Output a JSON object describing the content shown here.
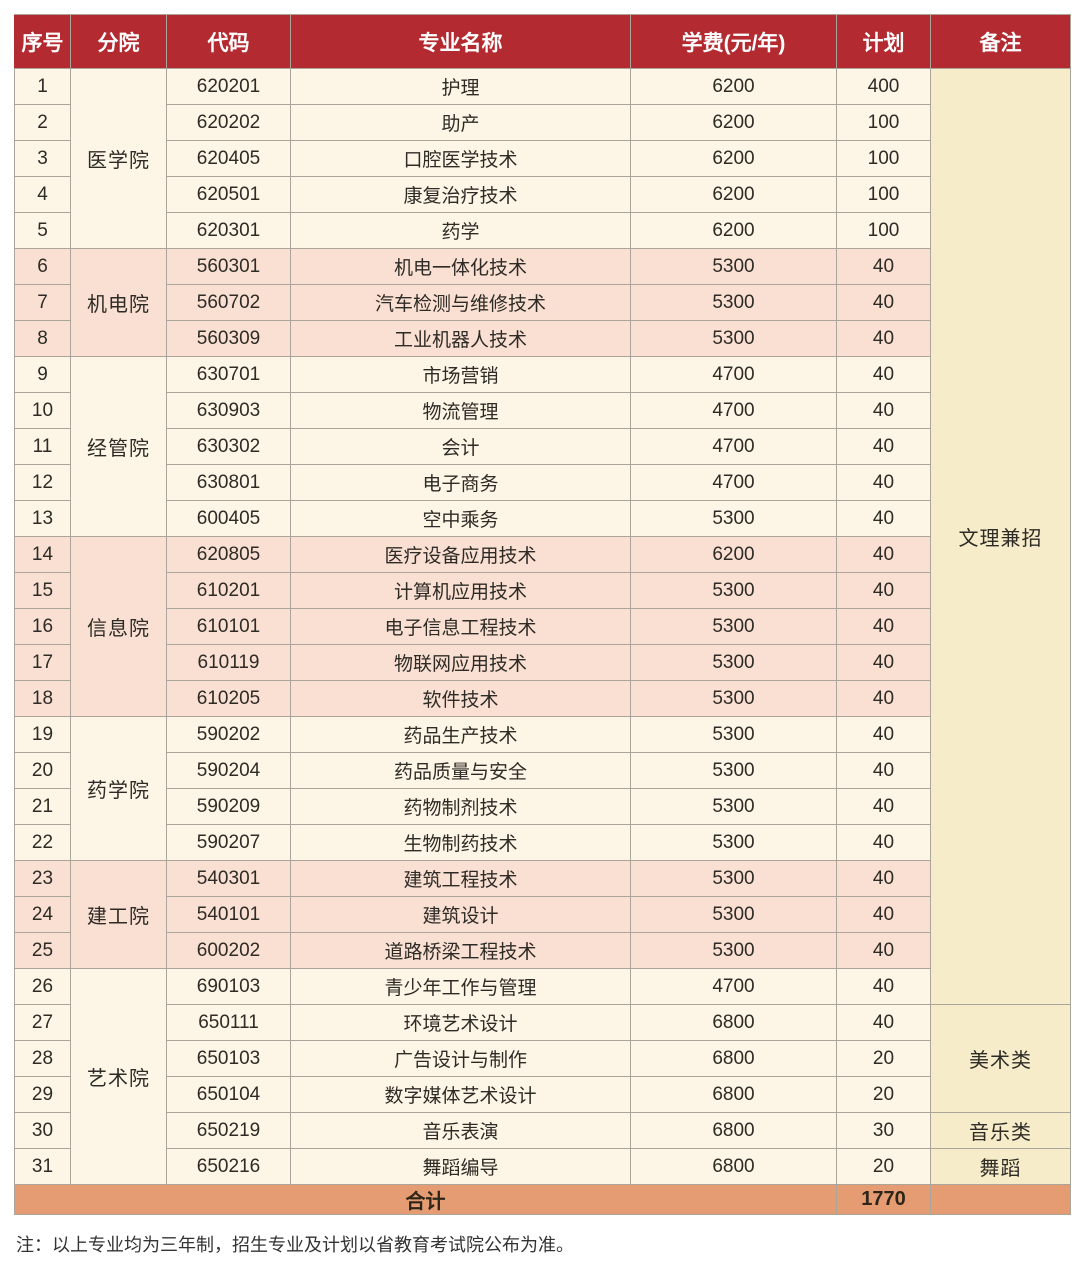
{
  "colors": {
    "header_bg": "#b32a30",
    "header_text": "#ffffff",
    "row_cream": "#fdf6e6",
    "row_pink": "#f9e0d3",
    "remark_bg": "#f7ecc9",
    "footer_bg": "#e59c72",
    "grid_line": "#aaa49b"
  },
  "table": {
    "columns": [
      {
        "key": "no",
        "label": "序号"
      },
      {
        "key": "college",
        "label": "分院"
      },
      {
        "key": "code",
        "label": "代码"
      },
      {
        "key": "major",
        "label": "专业名称"
      },
      {
        "key": "tuition",
        "label": "学费(元/年)"
      },
      {
        "key": "plan",
        "label": "计划"
      },
      {
        "key": "remark",
        "label": "备注"
      }
    ],
    "groups": [
      {
        "college": "医学院",
        "tone": "cream",
        "rows": [
          {
            "no": "1",
            "code": "620201",
            "major": "护理",
            "tuition": "6200",
            "plan": "400"
          },
          {
            "no": "2",
            "code": "620202",
            "major": "助产",
            "tuition": "6200",
            "plan": "100"
          },
          {
            "no": "3",
            "code": "620405",
            "major": "口腔医学技术",
            "tuition": "6200",
            "plan": "100"
          },
          {
            "no": "4",
            "code": "620501",
            "major": "康复治疗技术",
            "tuition": "6200",
            "plan": "100"
          },
          {
            "no": "5",
            "code": "620301",
            "major": "药学",
            "tuition": "6200",
            "plan": "100"
          }
        ]
      },
      {
        "college": "机电院",
        "tone": "pink",
        "rows": [
          {
            "no": "6",
            "code": "560301",
            "major": "机电一体化技术",
            "tuition": "5300",
            "plan": "40"
          },
          {
            "no": "7",
            "code": "560702",
            "major": "汽车检测与维修技术",
            "tuition": "5300",
            "plan": "40"
          },
          {
            "no": "8",
            "code": "560309",
            "major": "工业机器人技术",
            "tuition": "5300",
            "plan": "40"
          }
        ]
      },
      {
        "college": "经管院",
        "tone": "cream",
        "rows": [
          {
            "no": "9",
            "code": "630701",
            "major": "市场营销",
            "tuition": "4700",
            "plan": "40"
          },
          {
            "no": "10",
            "code": "630903",
            "major": "物流管理",
            "tuition": "4700",
            "plan": "40"
          },
          {
            "no": "11",
            "code": "630302",
            "major": "会计",
            "tuition": "4700",
            "plan": "40"
          },
          {
            "no": "12",
            "code": "630801",
            "major": "电子商务",
            "tuition": "4700",
            "plan": "40"
          },
          {
            "no": "13",
            "code": "600405",
            "major": "空中乘务",
            "tuition": "5300",
            "plan": "40"
          }
        ]
      },
      {
        "college": "信息院",
        "tone": "pink",
        "rows": [
          {
            "no": "14",
            "code": "620805",
            "major": "医疗设备应用技术",
            "tuition": "6200",
            "plan": "40"
          },
          {
            "no": "15",
            "code": "610201",
            "major": "计算机应用技术",
            "tuition": "5300",
            "plan": "40"
          },
          {
            "no": "16",
            "code": "610101",
            "major": "电子信息工程技术",
            "tuition": "5300",
            "plan": "40"
          },
          {
            "no": "17",
            "code": "610119",
            "major": "物联网应用技术",
            "tuition": "5300",
            "plan": "40"
          },
          {
            "no": "18",
            "code": "610205",
            "major": "软件技术",
            "tuition": "5300",
            "plan": "40"
          }
        ]
      },
      {
        "college": "药学院",
        "tone": "cream",
        "rows": [
          {
            "no": "19",
            "code": "590202",
            "major": "药品生产技术",
            "tuition": "5300",
            "plan": "40"
          },
          {
            "no": "20",
            "code": "590204",
            "major": "药品质量与安全",
            "tuition": "5300",
            "plan": "40"
          },
          {
            "no": "21",
            "code": "590209",
            "major": "药物制剂技术",
            "tuition": "5300",
            "plan": "40"
          },
          {
            "no": "22",
            "code": "590207",
            "major": "生物制药技术",
            "tuition": "5300",
            "plan": "40"
          }
        ]
      },
      {
        "college": "建工院",
        "tone": "pink",
        "rows": [
          {
            "no": "23",
            "code": "540301",
            "major": "建筑工程技术",
            "tuition": "5300",
            "plan": "40"
          },
          {
            "no": "24",
            "code": "540101",
            "major": "建筑设计",
            "tuition": "5300",
            "plan": "40"
          },
          {
            "no": "25",
            "code": "600202",
            "major": "道路桥梁工程技术",
            "tuition": "5300",
            "plan": "40"
          }
        ]
      },
      {
        "college": "艺术院",
        "tone": "cream",
        "rows": [
          {
            "no": "26",
            "code": "690103",
            "major": "青少年工作与管理",
            "tuition": "4700",
            "plan": "40"
          },
          {
            "no": "27",
            "code": "650111",
            "major": "环境艺术设计",
            "tuition": "6800",
            "plan": "40"
          },
          {
            "no": "28",
            "code": "650103",
            "major": "广告设计与制作",
            "tuition": "6800",
            "plan": "20"
          },
          {
            "no": "29",
            "code": "650104",
            "major": "数字媒体艺术设计",
            "tuition": "6800",
            "plan": "20"
          },
          {
            "no": "30",
            "code": "650219",
            "major": "音乐表演",
            "tuition": "6800",
            "plan": "30"
          },
          {
            "no": "31",
            "code": "650216",
            "major": "舞蹈编导",
            "tuition": "6800",
            "plan": "20"
          }
        ]
      }
    ],
    "remark_groups": [
      {
        "label": "文理兼招",
        "start_no": "1",
        "row_count": 26
      },
      {
        "label": "美术类",
        "start_no": "27",
        "row_count": 3
      },
      {
        "label": "音乐类",
        "start_no": "30",
        "row_count": 1
      },
      {
        "label": "舞蹈",
        "start_no": "31",
        "row_count": 1
      }
    ],
    "footer": {
      "label": "合计",
      "total": "1770"
    }
  },
  "note": "注：以上专业均为三年制，招生专业及计划以省教育考试院公布为准。"
}
